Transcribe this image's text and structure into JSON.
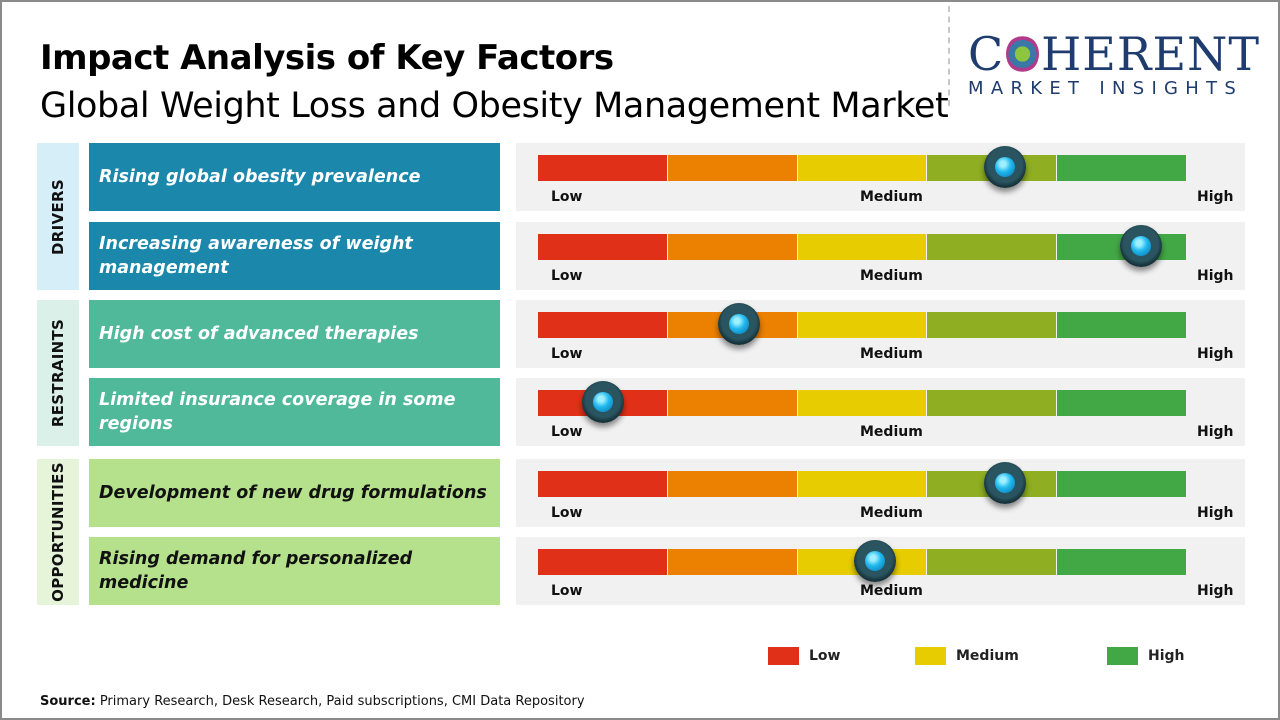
{
  "header": {
    "title": "Impact Analysis of Key Factors",
    "subtitle": "Global Weight Loss and Obesity Management Market"
  },
  "logo": {
    "top": "COHERENT",
    "bottom": "MARKET INSIGHTS"
  },
  "categories": [
    {
      "label": "DRIVERS",
      "color": "#1a87ab",
      "bg": "#d5eef8",
      "text": "#ffffff"
    },
    {
      "label": "RESTRAINTS",
      "color": "#4fb99a",
      "bg": "#dbf0e9",
      "text": "#ffffff"
    },
    {
      "label": "OPPORTUNITIES",
      "color": "#b6e18c",
      "bg": "#e6f4d9",
      "text": "#111111"
    }
  ],
  "scale_labels": {
    "low": "Low",
    "medium": "Medium",
    "high": "High"
  },
  "segment_colors": [
    "#e03018",
    "#ec8000",
    "#e6cc00",
    "#8fae22",
    "#42a845"
  ],
  "chart_data": {
    "type": "gauge",
    "scale": [
      "Low",
      "Medium",
      "High"
    ],
    "factors": [
      {
        "category": "DRIVERS",
        "label": "Rising global obesity prevalence",
        "impact": 0.72
      },
      {
        "category": "DRIVERS",
        "label": "Increasing awareness of weight management",
        "impact": 0.93
      },
      {
        "category": "RESTRAINTS",
        "label": "High cost of advanced therapies",
        "impact": 0.31
      },
      {
        "category": "RESTRAINTS",
        "label": "Limited insurance coverage in some regions",
        "impact": 0.1
      },
      {
        "category": "OPPORTUNITIES",
        "label": "Development of new drug formulations",
        "impact": 0.72
      },
      {
        "category": "OPPORTUNITIES",
        "label": "Rising demand for personalized medicine",
        "impact": 0.52
      }
    ]
  },
  "legend": [
    {
      "label": "Low",
      "color": "#e03018"
    },
    {
      "label": "Medium",
      "color": "#e6cc00"
    },
    {
      "label": "High",
      "color": "#42a845"
    }
  ],
  "source": {
    "prefix": "Source:",
    "text": " Primary Research, Desk Research, Paid subscriptions, CMI Data Repository"
  }
}
